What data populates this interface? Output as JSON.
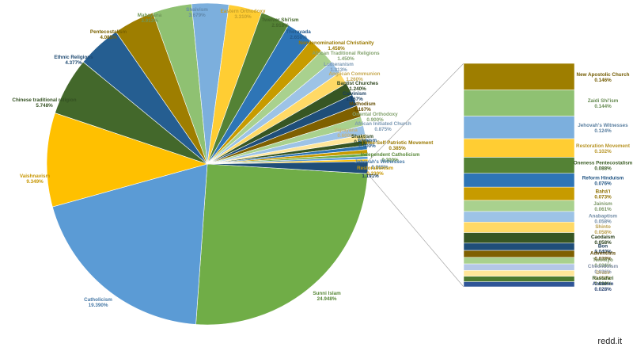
{
  "watermark": "redd.it",
  "chart_data": {
    "type": "pie",
    "subtype": "bar-of-pie",
    "title": "",
    "slices": [
      {
        "name": "Sunni Islam",
        "value": 24.948,
        "label": "24.948%",
        "color": "#70ad47"
      },
      {
        "name": "Catholicism",
        "value": 19.39,
        "label": "19.390%",
        "color": "#5b9bd5"
      },
      {
        "name": "Vaishnavism",
        "value": 9.349,
        "label": "9.349%",
        "color": "#ffc000"
      },
      {
        "name": "Chinese traditional religion",
        "value": 5.748,
        "label": "5.748%",
        "color": "#43682b"
      },
      {
        "name": "Ethnic Religions",
        "value": 4.377,
        "label": "4.377%",
        "color": "#255e91"
      },
      {
        "name": "Pentecostalism",
        "value": 4.085,
        "label": "4.085%",
        "color": "#9e7e00"
      },
      {
        "name": "Mahayana",
        "value": 3.913,
        "label": "3.913%",
        "color": "#8fc172"
      },
      {
        "name": "Shaivism",
        "value": 3.679,
        "label": "3.679%",
        "color": "#7cafdd"
      },
      {
        "name": "Eastern Orthodoxy",
        "value": 3.31,
        "label": "3.310%",
        "color": "#ffcd33"
      },
      {
        "name": "Twelver Shi'ism",
        "value": 2.918,
        "label": "2.918%",
        "color": "#548235"
      },
      {
        "name": "Theravada",
        "value": 2.658,
        "label": "2.658%",
        "color": "#2e75b6"
      },
      {
        "name": "Nondenominational Christianity",
        "value": 1.458,
        "label": "1.458%",
        "color": "#c79b00"
      },
      {
        "name": "African Traditional Religions",
        "value": 1.45,
        "label": "1.450%",
        "color": "#a9d18e"
      },
      {
        "name": "Lutheranism",
        "value": 1.313,
        "label": "1.313%",
        "color": "#9dc3e6"
      },
      {
        "name": "Anglican Communion",
        "value": 1.26,
        "label": "1.260%",
        "color": "#ffd966"
      },
      {
        "name": "Baptist Churches",
        "value": 1.24,
        "label": "1.240%",
        "color": "#375623"
      },
      {
        "name": "Calvinism",
        "value": 1.167,
        "label": "1.167%",
        "color": "#1f4e79"
      },
      {
        "name": "Methodism",
        "value": 1.167,
        "label": "1.167%",
        "color": "#7f6000"
      },
      {
        "name": "Oriental Orthodoxy",
        "value": 0.9,
        "label": "0.900%",
        "color": "#a9d18e"
      },
      {
        "name": "African Initiated Church",
        "value": 0.875,
        "label": "0.875%",
        "color": "#9dc3e6"
      },
      {
        "name": "Vajrayana",
        "value": 0.6,
        "label": "0.600%",
        "color": "#ffe699"
      },
      {
        "name": "Shaktism",
        "value": 0.5,
        "label": "0.500%",
        "color": "#375623"
      },
      {
        "name": "Sikhism",
        "value": 0.4,
        "label": "0.400%",
        "color": "#2e75b6"
      },
      {
        "name": "Three-Self Patriotic Movement",
        "value": 0.385,
        "label": "0.385%",
        "color": "#c79b00"
      },
      {
        "name": "Independent Catholicism",
        "value": 0.3,
        "label": "0.300%",
        "color": "#70ad47"
      },
      {
        "name": "Jehovah's Witnesses",
        "value": 0.265,
        "label": "0.265%",
        "color": "#5b9bd5"
      },
      {
        "name": "Restorationism",
        "value": 0.23,
        "label": "0.230%",
        "color": "#ffc000"
      },
      {
        "name": "Other",
        "value": 1.191,
        "label": "1.191%",
        "color": "#1f4e79"
      }
    ],
    "bar_items": [
      {
        "name": "New Apostolic Church",
        "label": "0.146%",
        "value": 0.146,
        "color": "#9e7e00"
      },
      {
        "name": "Zaidi Shi'ism",
        "label": "0.144%",
        "value": 0.144,
        "color": "#8fc172"
      },
      {
        "name": "Jehovah's Witnesses",
        "label": "0.124%",
        "value": 0.124,
        "color": "#7cafdd"
      },
      {
        "name": "Restoration Movement",
        "label": "0.102%",
        "value": 0.102,
        "color": "#ffcd33"
      },
      {
        "name": "Oneness Pentecostalism",
        "label": "0.088%",
        "value": 0.088,
        "color": "#548235"
      },
      {
        "name": "Reform Hinduism",
        "label": "0.076%",
        "value": 0.076,
        "color": "#2e75b6"
      },
      {
        "name": "Bahá'í",
        "label": "0.073%",
        "value": 0.073,
        "color": "#c79b00"
      },
      {
        "name": "Jainism",
        "label": "0.061%",
        "value": 0.061,
        "color": "#a9d18e"
      },
      {
        "name": "Anabaptism",
        "label": "0.058%",
        "value": 0.058,
        "color": "#9dc3e6"
      },
      {
        "name": "Shinto",
        "label": "0.058%",
        "value": 0.058,
        "color": "#ffd966"
      },
      {
        "name": "Caodaism",
        "label": "0.058%",
        "value": 0.058,
        "color": "#375623"
      },
      {
        "name": "Bon",
        "label": "0.040%",
        "value": 0.04,
        "color": "#1f4e79"
      },
      {
        "name": "Adventists",
        "label": "0.038%",
        "value": 0.038,
        "color": "#7f6000"
      },
      {
        "name": "Tenrikyo",
        "label": "0.036%",
        "value": 0.036,
        "color": "#a9d18e"
      },
      {
        "name": "Cheondoism",
        "label": "0.036%",
        "value": 0.036,
        "color": "#b4c7e7"
      },
      {
        "name": "Druze",
        "label": "0.032%",
        "value": 0.032,
        "color": "#ffe699"
      },
      {
        "name": "Rastafari",
        "label": "0.030%",
        "value": 0.03,
        "color": "#4c7a2f"
      },
      {
        "name": "Animism",
        "label": "0.028%",
        "value": 0.028,
        "color": "#2f5597"
      }
    ]
  }
}
